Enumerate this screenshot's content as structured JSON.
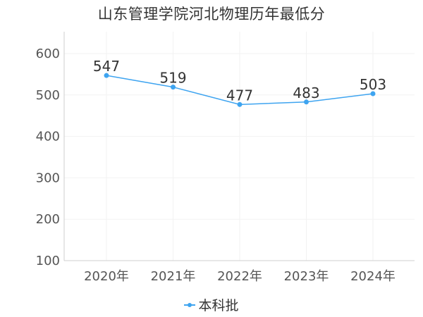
{
  "chart_data": {
    "type": "line",
    "title": "山东管理学院河北物理历年最低分",
    "categories": [
      "2020年",
      "2021年",
      "2022年",
      "2023年",
      "2024年"
    ],
    "series": [
      {
        "name": "本科批",
        "values": [
          547,
          519,
          477,
          483,
          503
        ],
        "color": "#3ea4f0"
      }
    ],
    "ylim": [
      100,
      600
    ],
    "yticks": [
      100,
      200,
      300,
      400,
      500,
      600
    ],
    "grid": true,
    "data_labels": true,
    "legend_position": "bottom-center"
  }
}
